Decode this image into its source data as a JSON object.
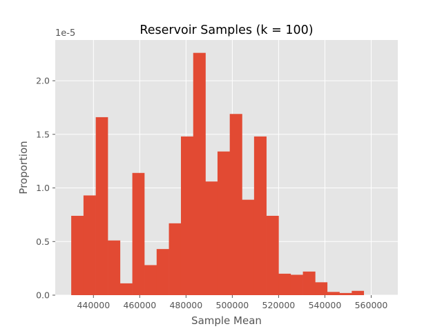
{
  "chart_data": {
    "type": "bar",
    "title": "Reservoir Samples (k = 100)",
    "xlabel": "Sample Mean",
    "ylabel": "Proportion",
    "y_offset_label": "1e-5",
    "xlim": [
      423500,
      571500
    ],
    "ylim": [
      0,
      2.38
    ],
    "x_ticks": [
      440000,
      460000,
      480000,
      500000,
      520000,
      540000,
      560000
    ],
    "x_tick_labels": [
      "440000",
      "460000",
      "480000",
      "500000",
      "520000",
      "540000",
      "560000"
    ],
    "y_ticks": [
      0.0,
      0.5,
      1.0,
      1.5,
      2.0
    ],
    "y_tick_labels": [
      "0.0",
      "0.5",
      "1.0",
      "1.5",
      "2.0"
    ],
    "bin_edges": [
      430400,
      435700,
      441000,
      446200,
      451500,
      456800,
      462000,
      467300,
      472600,
      477800,
      483100,
      488400,
      493600,
      498900,
      504200,
      509400,
      514700,
      520000,
      525200,
      530500,
      535800,
      541000,
      546300,
      551600,
      556800,
      562100
    ],
    "values": [
      0.74,
      0.93,
      1.66,
      0.51,
      0.11,
      1.14,
      0.28,
      0.43,
      0.67,
      1.48,
      2.26,
      1.06,
      1.34,
      1.69,
      0.89,
      1.48,
      0.74,
      0.2,
      0.19,
      0.22,
      0.12,
      0.03,
      0.02,
      0.04,
      0.0
    ],
    "grid": true,
    "background_color": "#e5e5e5",
    "grid_color": "#ffffff",
    "bar_color": "#e24a33",
    "text_color": "#555555",
    "title_color": "#000000"
  }
}
